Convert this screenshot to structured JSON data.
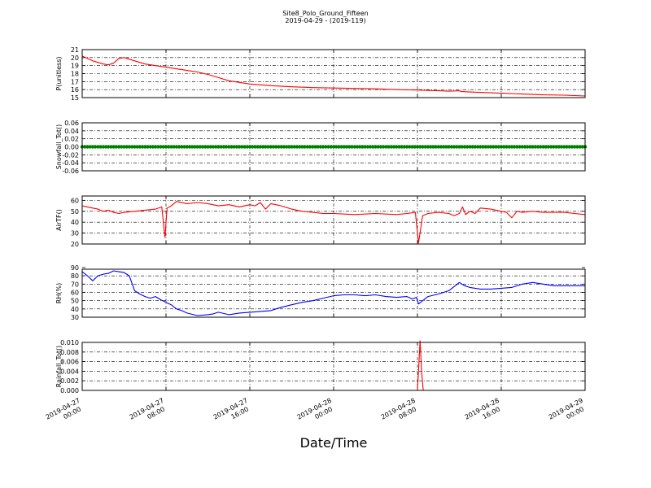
{
  "figure": {
    "title": "Site8_Polo_Ground_Fifteen",
    "subtitle": "2019-04-29 - (2019-119)",
    "xlabel": "Date/Time",
    "x_ticks": [
      "2019-04-27\n00:00",
      "2019-04-27\n08:00",
      "2019-04-27\n16:00",
      "2019-04-28\n00:00",
      "2019-04-28\n08:00",
      "2019-04-28\n16:00",
      "2019-04-29\n00:00"
    ],
    "x_range_hours": [
      0,
      48
    ]
  },
  "chart_data": [
    {
      "type": "line",
      "ylabel": "P(unitless)",
      "ylim": [
        15,
        21
      ],
      "yticks": [
        "15",
        "16",
        "17",
        "18",
        "19",
        "20",
        "21"
      ],
      "grid": true,
      "color": "#ff0000",
      "x_hours": [
        0,
        1,
        2,
        2.5,
        3,
        3.5,
        4,
        5,
        6,
        7,
        8,
        9,
        10,
        11,
        12,
        13,
        14,
        16,
        18,
        20,
        22,
        24,
        26,
        28,
        30,
        32,
        34,
        35,
        36,
        36.2,
        37,
        38,
        40,
        42,
        44,
        46,
        48
      ],
      "values": [
        20.2,
        19.6,
        19.2,
        19.1,
        19.3,
        19.9,
        20.0,
        19.6,
        19.2,
        19.0,
        18.8,
        18.6,
        18.4,
        18.2,
        17.9,
        17.5,
        17.1,
        16.7,
        16.5,
        16.35,
        16.25,
        16.2,
        16.15,
        16.1,
        16.0,
        15.95,
        15.85,
        15.8,
        15.85,
        15.75,
        15.7,
        15.65,
        15.55,
        15.45,
        15.35,
        15.3,
        15.2
      ]
    },
    {
      "type": "scatter",
      "ylabel": "Snowfall_Tot()",
      "ylim": [
        -0.06,
        0.06
      ],
      "yticks": [
        "-0.06",
        "-0.04",
        "-0.02",
        "0.00",
        "0.02",
        "0.04",
        "0.06"
      ],
      "grid": true,
      "color": "#008000",
      "x_range": [
        0,
        48
      ],
      "step_hours": 0.25,
      "constant_value": 0.0
    },
    {
      "type": "line",
      "ylabel": "AirTF()",
      "ylim": [
        20,
        64
      ],
      "yticks": [
        "20",
        "30",
        "40",
        "50",
        "60"
      ],
      "grid": true,
      "color": "#ff0000",
      "x_hours": [
        0,
        1,
        1.5,
        2,
        2.5,
        3,
        3.5,
        4,
        5,
        6,
        7,
        7.6,
        7.9,
        8.1,
        8.5,
        9,
        10,
        11,
        12,
        13,
        14,
        15,
        16,
        16.5,
        17,
        17.5,
        18,
        18.5,
        19,
        20,
        21,
        22,
        23,
        24,
        26,
        28,
        30,
        31,
        31.8,
        32.1,
        32.5,
        33,
        34,
        35,
        35.5,
        36,
        36.3,
        36.6,
        37,
        37.5,
        38,
        39,
        40,
        40.5,
        41,
        41.5,
        42,
        43,
        44,
        46,
        47,
        48
      ],
      "values": [
        55,
        53,
        52,
        50,
        51,
        49,
        48,
        49,
        50,
        51,
        52,
        54,
        26,
        53,
        55,
        59,
        57,
        58,
        57,
        55,
        56,
        54,
        56,
        55,
        58,
        52,
        57,
        56,
        55,
        52,
        50,
        49,
        48,
        48,
        47,
        48,
        47,
        48,
        49,
        21,
        46,
        48,
        49,
        48,
        46,
        48,
        54,
        47,
        50,
        48,
        53,
        52,
        50,
        49,
        44,
        50,
        49,
        50,
        49,
        49,
        48,
        47
      ]
    },
    {
      "type": "line",
      "ylabel": "RH(%)",
      "ylim": [
        30,
        88
      ],
      "yticks": [
        "30",
        "40",
        "50",
        "60",
        "70",
        "80",
        "90"
      ],
      "grid": true,
      "color": "#0000ff",
      "x_hours": [
        0,
        0.5,
        1,
        1.5,
        2,
        2.5,
        3,
        3.5,
        4,
        4.5,
        5,
        5.5,
        6,
        6.5,
        7,
        7.5,
        8,
        8.5,
        9,
        9.5,
        10,
        11,
        12,
        12.5,
        13,
        14,
        15,
        16,
        17,
        18,
        19,
        20,
        21,
        22,
        23,
        24,
        25,
        26,
        27,
        28,
        29,
        30,
        31,
        31.5,
        31.9,
        32.1,
        32.5,
        33,
        34,
        35,
        36,
        36.5,
        37,
        38,
        39,
        40,
        41,
        42,
        43,
        44,
        45,
        46,
        47,
        48
      ],
      "values": [
        85,
        80,
        74,
        80,
        82,
        83,
        86,
        85,
        84,
        80,
        62,
        58,
        55,
        53,
        55,
        51,
        48,
        45,
        40,
        38,
        35,
        32,
        33,
        34,
        36,
        33,
        35,
        36,
        37,
        38,
        42,
        45,
        48,
        50,
        53,
        56,
        57,
        57,
        56,
        57,
        55,
        54,
        55,
        52,
        54,
        46,
        50,
        55,
        58,
        62,
        72,
        68,
        66,
        64,
        64,
        65,
        66,
        70,
        72,
        70,
        68,
        68,
        68,
        68
      ]
    },
    {
      "type": "line",
      "ylabel": "Rainfall_Tot()",
      "ylim": [
        0.0,
        0.01
      ],
      "yticks": [
        "0.000",
        "0.002",
        "0.004",
        "0.006",
        "0.008",
        "0.010"
      ],
      "grid": true,
      "color": "#ff0000",
      "x_hours": [
        0,
        32,
        32.15,
        32.25,
        32.4,
        32.55,
        48
      ],
      "values": [
        0,
        0,
        0.006,
        0.0105,
        0.004,
        0,
        0
      ]
    }
  ]
}
